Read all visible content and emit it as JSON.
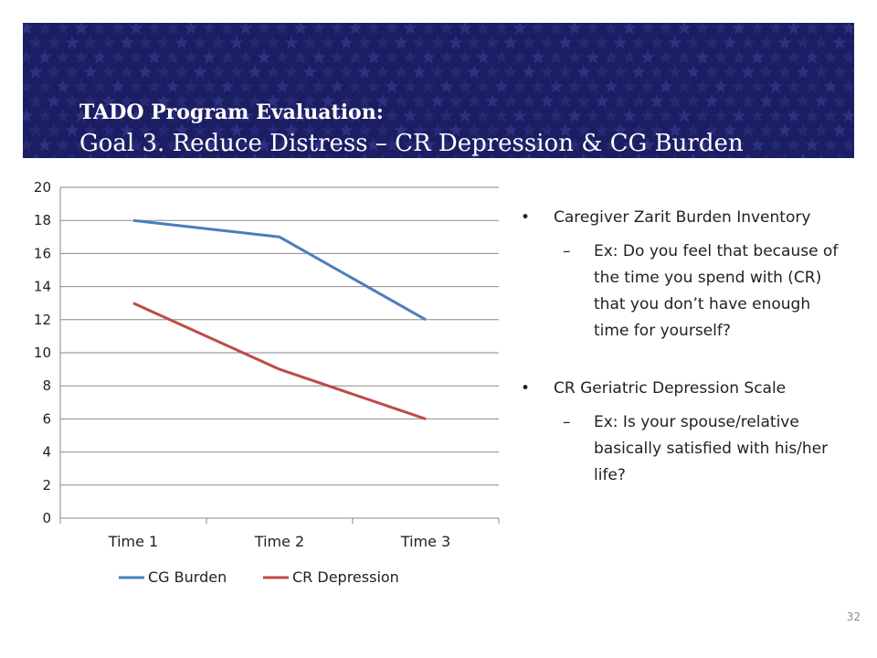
{
  "slide": {
    "title_line1": "TADO Program Evaluation:",
    "title_line2": "Goal 3. Reduce Distress – CR Depression & CG Burden",
    "page_number": "32",
    "banner_color": "#1b1e63"
  },
  "bullets": [
    {
      "mark": "•",
      "text": "Caregiver Zarit Burden Inventory",
      "sub": {
        "mark": "–",
        "text": "Ex: Do you feel that because of the time you spend with (CR) that you don’t have enough time for yourself?"
      }
    },
    {
      "mark": "•",
      "text": "CR Geriatric Depression Scale",
      "sub": {
        "mark": "–",
        "text": "Ex: Is your spouse/relative basically satisfied with his/her life?"
      }
    }
  ],
  "chart_data": {
    "type": "line",
    "categories": [
      "Time 1",
      "Time 2",
      "Time 3"
    ],
    "series": [
      {
        "name": "CG Burden",
        "values": [
          18,
          17,
          12
        ],
        "color": "#4a7ebb"
      },
      {
        "name": "CR Depression",
        "values": [
          13,
          9,
          6
        ],
        "color": "#be4b48"
      }
    ],
    "ylim": [
      0,
      20
    ],
    "yticks": [
      0,
      2,
      4,
      6,
      8,
      10,
      12,
      14,
      16,
      18,
      20
    ],
    "grid": true,
    "legend": "bottom"
  }
}
